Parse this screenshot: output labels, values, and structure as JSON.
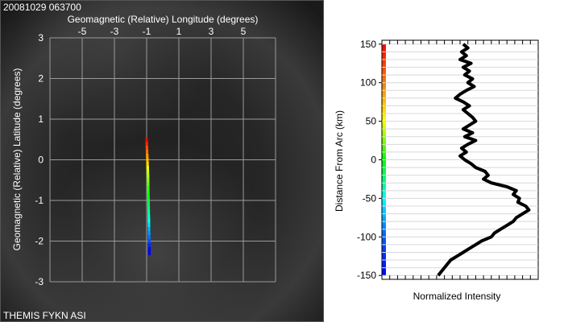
{
  "timestamp": "20081029 063700",
  "footer": "THEMIS FYKN ASI",
  "chart_data": [
    {
      "type": "scatter",
      "title": "Geomagnetic (Relative) Longitude (degrees)",
      "xlabel": "Geomagnetic (Relative) Longitude (degrees)",
      "ylabel": "Geomagnetic (Relative) Latitude (degrees)",
      "xlim": [
        -7,
        7
      ],
      "ylim": [
        -3,
        3
      ],
      "x_ticks": [
        "-5",
        "-3",
        "-1",
        "1",
        "3",
        "5"
      ],
      "y_ticks": [
        "-3",
        "-2",
        "-1",
        "0",
        "1",
        "2",
        "3"
      ],
      "grid": true,
      "series": [
        {
          "points": [
            [
              -1.0,
              0.45
            ],
            [
              -0.99,
              0.35
            ],
            [
              -0.98,
              0.25
            ],
            [
              -0.97,
              0.15
            ],
            [
              -0.96,
              0.05
            ],
            [
              -0.95,
              -0.05
            ],
            [
              -0.94,
              -0.15
            ],
            [
              -0.93,
              -0.25
            ],
            [
              -0.92,
              -0.35
            ],
            [
              -0.91,
              -0.45
            ],
            [
              -0.91,
              -0.55
            ],
            [
              -0.9,
              -0.65
            ],
            [
              -0.9,
              -0.75
            ],
            [
              -0.89,
              -0.85
            ],
            [
              -0.89,
              -0.95
            ],
            [
              -0.88,
              -1.05
            ],
            [
              -0.88,
              -1.15
            ],
            [
              -0.87,
              -1.25
            ],
            [
              -0.87,
              -1.35
            ],
            [
              -0.86,
              -1.45
            ],
            [
              -0.86,
              -1.55
            ],
            [
              -0.85,
              -1.65
            ],
            [
              -0.85,
              -1.75
            ],
            [
              -0.84,
              -1.85
            ],
            [
              -0.84,
              -1.95
            ],
            [
              -0.83,
              -2.05
            ],
            [
              -0.83,
              -2.15
            ],
            [
              -0.82,
              -2.25
            ]
          ]
        }
      ]
    },
    {
      "type": "line",
      "xlabel": "Normalized Intensity",
      "ylabel": "Distance From Arc (km)",
      "ylim": [
        -155,
        155
      ],
      "y_ticks": [
        "150",
        "100",
        "50",
        "0",
        "-50",
        "-100",
        "-150"
      ],
      "grid": true,
      "series": [
        {
          "profile": [
            [
              150,
              0.52
            ],
            [
              145,
              0.55
            ],
            [
              140,
              0.51
            ],
            [
              135,
              0.54
            ],
            [
              130,
              0.5
            ],
            [
              125,
              0.57
            ],
            [
              120,
              0.52
            ],
            [
              115,
              0.56
            ],
            [
              110,
              0.53
            ],
            [
              105,
              0.58
            ],
            [
              100,
              0.55
            ],
            [
              95,
              0.59
            ],
            [
              90,
              0.54
            ],
            [
              85,
              0.5
            ],
            [
              80,
              0.47
            ],
            [
              75,
              0.52
            ],
            [
              70,
              0.56
            ],
            [
              65,
              0.52
            ],
            [
              60,
              0.55
            ],
            [
              55,
              0.58
            ],
            [
              50,
              0.6
            ],
            [
              45,
              0.56
            ],
            [
              40,
              0.52
            ],
            [
              35,
              0.58
            ],
            [
              30,
              0.53
            ],
            [
              25,
              0.6
            ],
            [
              20,
              0.55
            ],
            [
              15,
              0.51
            ],
            [
              10,
              0.54
            ],
            [
              5,
              0.5
            ],
            [
              0,
              0.53
            ],
            [
              -5,
              0.57
            ],
            [
              -10,
              0.6
            ],
            [
              -15,
              0.66
            ],
            [
              -20,
              0.68
            ],
            [
              -25,
              0.65
            ],
            [
              -30,
              0.7
            ],
            [
              -35,
              0.8
            ],
            [
              -40,
              0.86
            ],
            [
              -45,
              0.84
            ],
            [
              -50,
              0.88
            ],
            [
              -55,
              0.87
            ],
            [
              -60,
              0.92
            ],
            [
              -65,
              0.94
            ],
            [
              -70,
              0.9
            ],
            [
              -75,
              0.86
            ],
            [
              -80,
              0.84
            ],
            [
              -85,
              0.8
            ],
            [
              -90,
              0.76
            ],
            [
              -95,
              0.72
            ],
            [
              -100,
              0.7
            ],
            [
              -105,
              0.64
            ],
            [
              -110,
              0.6
            ],
            [
              -115,
              0.56
            ],
            [
              -120,
              0.52
            ],
            [
              -125,
              0.48
            ],
            [
              -130,
              0.44
            ],
            [
              -135,
              0.42
            ],
            [
              -140,
              0.4
            ],
            [
              -145,
              0.38
            ],
            [
              -150,
              0.36
            ]
          ]
        }
      ]
    }
  ]
}
